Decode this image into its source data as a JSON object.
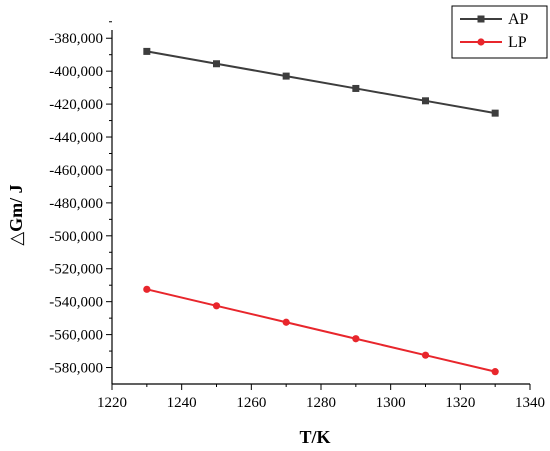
{
  "chart_data": {
    "type": "line",
    "xlabel": "T/K",
    "ylabel": "△Gm/ J",
    "xlim": [
      1220,
      1340
    ],
    "ylim": [
      -590000,
      -375000
    ],
    "xticks": [
      1220,
      1240,
      1260,
      1280,
      1300,
      1320,
      1340
    ],
    "yticks": [
      -380000,
      -400000,
      -420000,
      -440000,
      -460000,
      -480000,
      -500000,
      -520000,
      -540000,
      -560000,
      -580000
    ],
    "xtick_labels": [
      "1220",
      "1240",
      "1260",
      "1280",
      "1300",
      "1320",
      "1340"
    ],
    "ytick_labels": [
      "-380,000",
      "-400,000",
      "-420,000",
      "-440,000",
      "-460,000",
      "-480,000",
      "-500,000",
      "-520,000",
      "-540,000",
      "-560,000",
      "-580,000"
    ],
    "x": [
      1230,
      1250,
      1270,
      1290,
      1310,
      1330
    ],
    "series": [
      {
        "name": "AP",
        "color": "#3d3d3d",
        "marker": "square",
        "values": [
          -388000,
          -395500,
          -403000,
          -410500,
          -418000,
          -425500
        ]
      },
      {
        "name": "LP",
        "color": "#e8262c",
        "marker": "circle",
        "values": [
          -532500,
          -542500,
          -552500,
          -562500,
          -572500,
          -582500
        ]
      }
    ],
    "legend_position": "top-right",
    "grid": false
  }
}
